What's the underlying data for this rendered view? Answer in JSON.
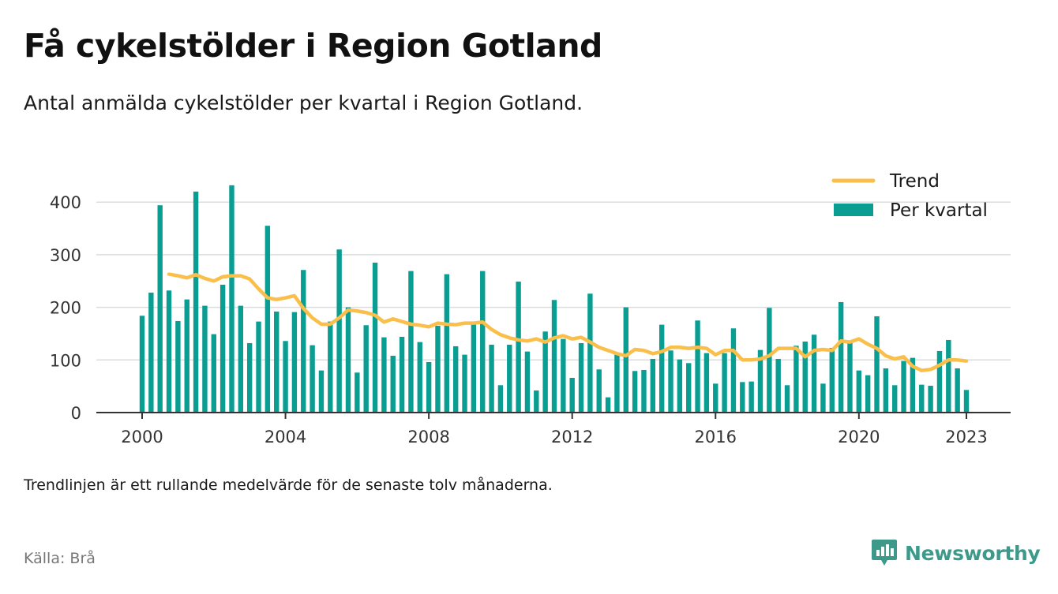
{
  "header": {
    "title": "Få cykelstölder i Region Gotland",
    "subtitle": "Antal anmälda cykelstölder per kvartal i Region Gotland."
  },
  "footer": {
    "note": "Trendlinjen är ett rullande medelvärde för de senaste tolv månaderna.",
    "source": "Källa: Brå",
    "brand": "Newsworthy"
  },
  "colors": {
    "bars": "#0a9e92",
    "trend": "#f9bf4a",
    "grid": "#dcdcdc",
    "axis": "#333333",
    "brand": "#3d9a8b"
  },
  "chart_data": {
    "type": "bar",
    "x_unit": "quarter",
    "x_start": "2000 Q1",
    "x_end": "2023 Q1",
    "xticks": [
      "2000",
      "2004",
      "2008",
      "2012",
      "2016",
      "2020",
      "2023"
    ],
    "yticks": [
      "0",
      "100",
      "200",
      "300",
      "400"
    ],
    "ylim": [
      0,
      440
    ],
    "legend_position": "top-right",
    "grid": true,
    "series": [
      {
        "name": "Per kvartal",
        "type": "bar",
        "values": [
          184,
          228,
          394,
          232,
          174,
          215,
          420,
          203,
          149,
          243,
          432,
          203,
          132,
          173,
          355,
          192,
          136,
          191,
          271,
          128,
          80,
          173,
          310,
          200,
          76,
          166,
          285,
          143,
          108,
          144,
          269,
          134,
          96,
          165,
          263,
          126,
          110,
          170,
          269,
          129,
          52,
          129,
          249,
          116,
          42,
          154,
          214,
          140,
          66,
          132,
          226,
          82,
          29,
          113,
          200,
          79,
          81,
          102,
          167,
          118,
          101,
          94,
          175,
          113,
          55,
          113,
          160,
          58,
          59,
          119,
          199,
          102,
          52,
          127,
          135,
          148,
          55,
          123,
          210,
          133,
          80,
          71,
          183,
          84,
          52,
          98,
          104,
          53,
          51,
          117,
          138,
          84,
          43
        ]
      },
      {
        "name": "Trend",
        "type": "line",
        "values": [
          null,
          null,
          null,
          263,
          260,
          256,
          262,
          255,
          250,
          258,
          260,
          260,
          254,
          235,
          218,
          215,
          218,
          222,
          198,
          180,
          168,
          168,
          180,
          195,
          193,
          190,
          185,
          172,
          178,
          173,
          168,
          166,
          163,
          170,
          168,
          167,
          170,
          170,
          172,
          158,
          148,
          142,
          138,
          136,
          140,
          134,
          142,
          146,
          140,
          143,
          134,
          124,
          118,
          112,
          108,
          120,
          118,
          112,
          116,
          124,
          124,
          122,
          124,
          122,
          110,
          118,
          118,
          100,
          100,
          102,
          108,
          122,
          122,
          122,
          106,
          118,
          120,
          118,
          136,
          134,
          140,
          130,
          122,
          108,
          102,
          106,
          88,
          80,
          82,
          90,
          100,
          100,
          98
        ]
      }
    ]
  }
}
